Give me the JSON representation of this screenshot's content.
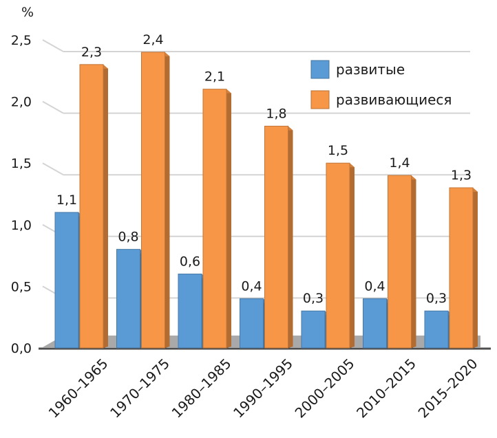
{
  "chart_data": {
    "type": "bar",
    "title": "",
    "ylabel": "%",
    "xlabel": "",
    "ylim": [
      0,
      2.5
    ],
    "yticks": [
      "0,0",
      "0,5",
      "1,0",
      "1,5",
      "2,0",
      "2,5"
    ],
    "ytick_values": [
      0,
      0.5,
      1.0,
      1.5,
      2.0,
      2.5
    ],
    "grid": true,
    "legend_position": "top-right",
    "categories": [
      "1960–1965",
      "1970–1975",
      "1980–1985",
      "1990–1995",
      "2000–2005",
      "2010–2015",
      "2015–2020"
    ],
    "series": [
      {
        "name": "развитые",
        "color": "#5b9bd5",
        "values": [
          1.1,
          0.8,
          0.6,
          0.4,
          0.3,
          0.4,
          0.3
        ],
        "labels": [
          "1,1",
          "0,8",
          "0,6",
          "0,4",
          "0,3",
          "0,4",
          "0,3"
        ]
      },
      {
        "name": "развивающиеся",
        "color": "#f79646",
        "values": [
          2.3,
          2.4,
          2.1,
          1.8,
          1.5,
          1.4,
          1.3
        ],
        "labels": [
          "2,3",
          "2,4",
          "2,1",
          "1,8",
          "1,5",
          "1,4",
          "1,3"
        ]
      }
    ]
  }
}
